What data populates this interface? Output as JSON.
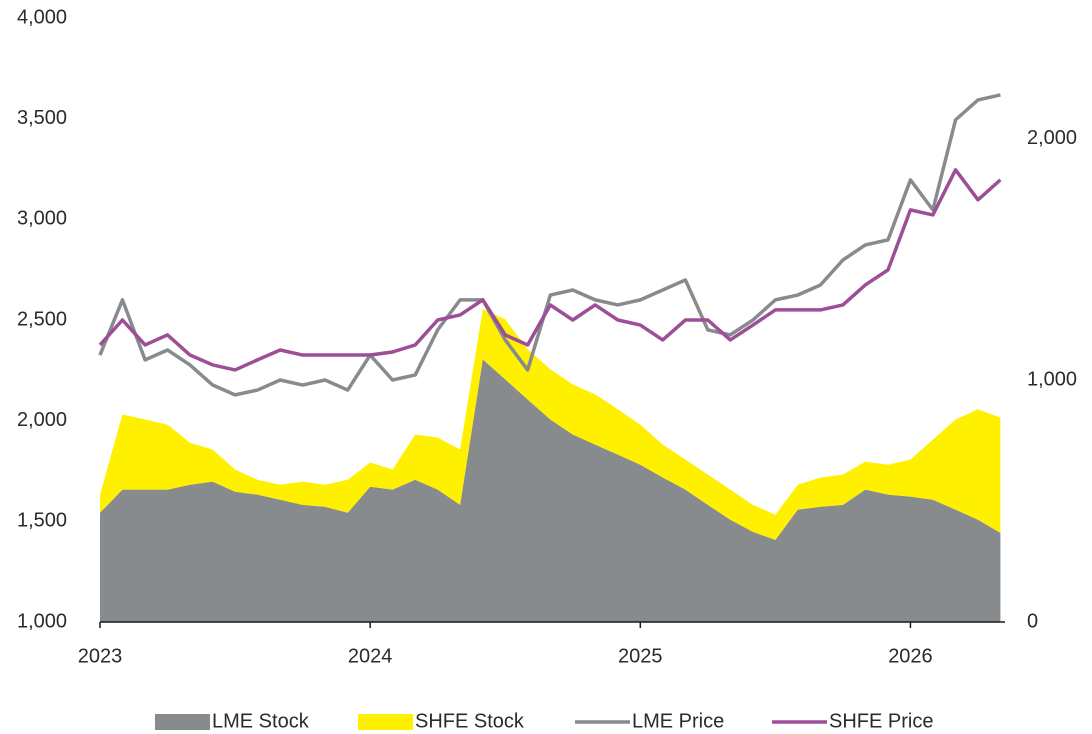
{
  "chart_data": {
    "type": "combo",
    "x": [
      2023,
      2023.083,
      2023.167,
      2023.25,
      2023.333,
      2023.417,
      2023.5,
      2023.583,
      2023.667,
      2023.75,
      2023.833,
      2023.917,
      2024,
      2024.083,
      2024.167,
      2024.25,
      2024.333,
      2024.417,
      2024.5,
      2024.583,
      2024.667,
      2024.75,
      2024.833,
      2024.917,
      2025,
      2025.083,
      2025.167,
      2025.25,
      2025.333,
      2025.417,
      2025.5,
      2025.583,
      2025.667,
      2025.75,
      2025.833,
      2025.917,
      2026,
      2026.083,
      2026.167,
      2026.25,
      2026.333
    ],
    "xlim": [
      2023,
      2026.35
    ],
    "xticks": [
      2023,
      2024,
      2025,
      2026
    ],
    "ylim": [
      1000,
      4000
    ],
    "yticks": [
      {
        "value": 1000,
        "label": "1,000"
      },
      {
        "value": 1500,
        "label": "1,500"
      },
      {
        "value": 2000,
        "label": "2,000"
      },
      {
        "value": 2500,
        "label": "2,500"
      },
      {
        "value": 3000,
        "label": "3,000"
      },
      {
        "value": 3500,
        "label": "3,500"
      },
      {
        "value": 4000,
        "label": "4,000"
      }
    ],
    "y2lim": [
      0,
      2500
    ],
    "y2ticks": [
      0,
      {
        "value": 1000,
        "label": "1,000"
      },
      {
        "value": 2000,
        "label": "2,000"
      }
    ],
    "series": [
      {
        "name": "LME Stock",
        "type": "area",
        "axis": "y2",
        "color": "#878b8e",
        "values": [
          452,
          548,
          548,
          548,
          568,
          581,
          539,
          527,
          506,
          485,
          477,
          452,
          560,
          548,
          589,
          548,
          485,
          1087,
          1004,
          921,
          838,
          776,
          734,
          693,
          651,
          598,
          548,
          485,
          423,
          373,
          340,
          465,
          477,
          485,
          548,
          527,
          519,
          506,
          465,
          423,
          369
        ]
      },
      {
        "name": "SHFE Stock",
        "type": "area",
        "axis": "y2",
        "color": "#fff000",
        "values": [
          75,
          311,
          290,
          269,
          174,
          133,
          92,
          62,
          62,
          96,
          91,
          137,
          100,
          83,
          187,
          215,
          229,
          208,
          249,
          208,
          208,
          207,
          208,
          187,
          166,
          136,
          124,
          125,
          125,
          112,
          104,
          103,
          121,
          125,
          116,
          124,
          153,
          249,
          373,
          457,
          477
        ]
      },
      {
        "name": "LME Price",
        "type": "line",
        "color": "#878b8e",
        "values": [
          2326,
          2600,
          2302,
          2351,
          2277,
          2177,
          2128,
          2152,
          2202,
          2177,
          2202,
          2152,
          2326,
          2202,
          2227,
          2451,
          2600,
          2600,
          2401,
          2252,
          2624,
          2649,
          2600,
          2575,
          2600,
          2649,
          2699,
          2451,
          2426,
          2500,
          2600,
          2624,
          2674,
          2798,
          2873,
          2898,
          3196,
          3047,
          3494,
          3593,
          3618
        ]
      },
      {
        "name": "SHFE Price",
        "type": "line",
        "color": "#9c4f97",
        "values": [
          2376,
          2500,
          2376,
          2426,
          2326,
          2277,
          2252,
          2302,
          2351,
          2326,
          2326,
          2326,
          2326,
          2341,
          2376,
          2500,
          2525,
          2600,
          2426,
          2376,
          2575,
          2500,
          2575,
          2500,
          2475,
          2401,
          2500,
          2500,
          2401,
          2475,
          2550,
          2550,
          2550,
          2575,
          2674,
          2749,
          3047,
          3022,
          3246,
          3097,
          3196
        ]
      }
    ]
  }
}
